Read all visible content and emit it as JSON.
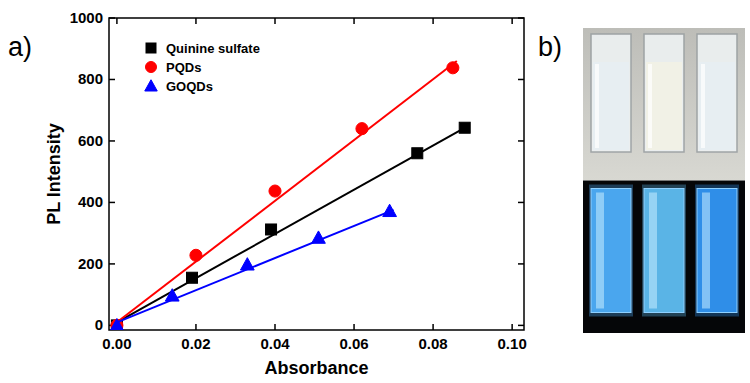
{
  "chart_data": {
    "type": "scatter",
    "panel_label": "a)",
    "x_label": "Absorbance",
    "y_label": "PL Intensity",
    "xlim": [
      -0.002,
      0.103
    ],
    "xticks": [
      {
        "value": 0,
        "label": "0.00"
      },
      {
        "value": 0.02,
        "label": "0.02"
      },
      {
        "value": 0.04,
        "label": "0.04"
      },
      {
        "value": 0.06,
        "label": "0.06"
      },
      {
        "value": 0.08,
        "label": "0.08"
      },
      {
        "value": 0.1,
        "label": "0.10"
      }
    ],
    "ylim": [
      -15,
      1000
    ],
    "yticks": [
      0,
      200,
      400,
      600,
      800,
      1000
    ],
    "grid": false,
    "legend": "upper left",
    "series": [
      {
        "name": "Quinine sulfate",
        "color": "#000000",
        "marker": "square",
        "x": [
          0,
          0.019,
          0.039,
          0.076,
          0.088
        ],
        "values": [
          0,
          155,
          312,
          560,
          643
        ],
        "fit_x": [
          0,
          0.089
        ],
        "fit_values": [
          10,
          650
        ]
      },
      {
        "name": "PQDs",
        "color": "#ff0000",
        "marker": "circle",
        "x": [
          0,
          0.02,
          0.04,
          0.062,
          0.085
        ],
        "values": [
          0,
          228,
          437,
          640,
          838
        ],
        "fit_x": [
          0,
          0.086
        ],
        "fit_values": [
          10,
          860
        ]
      },
      {
        "name": "GOQDs",
        "color": "#0000ff",
        "marker": "triangle",
        "x": [
          0,
          0.014,
          0.033,
          0.051,
          0.069
        ],
        "values": [
          0,
          97,
          198,
          285,
          372
        ],
        "fit_x": [
          0,
          0.07
        ],
        "fit_values": [
          10,
          376
        ]
      }
    ]
  },
  "photo": {
    "panel_label": "b)"
  }
}
